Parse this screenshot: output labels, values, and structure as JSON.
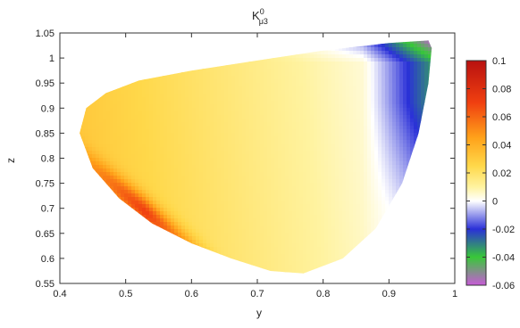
{
  "chart_data": {
    "type": "heatmap",
    "title_main": "K",
    "title_sup": "0",
    "title_sub": "μ3",
    "xlabel": "y",
    "ylabel": "z",
    "xlim": [
      0.4,
      1.0
    ],
    "ylim": [
      0.55,
      1.05
    ],
    "xticks": [
      "0.4",
      "0.5",
      "0.6",
      "0.7",
      "0.8",
      "0.9",
      "1"
    ],
    "yticks": [
      "0.55",
      "0.6",
      "0.65",
      "0.7",
      "0.75",
      "0.8",
      "0.85",
      "0.9",
      "0.95",
      "1",
      "1.05"
    ],
    "colorbar": {
      "min": -0.06,
      "max": 0.1,
      "ticks": [
        "0.1",
        "0.08",
        "0.06",
        "0.04",
        "0.02",
        "0",
        "-0.02",
        "-0.04",
        "-0.06"
      ],
      "stops": [
        {
          "v": -0.06,
          "color": "#c85ad8"
        },
        {
          "v": -0.04,
          "color": "#38c838"
        },
        {
          "v": -0.02,
          "color": "#2a30d8"
        },
        {
          "v": 0.0,
          "color": "#ffffff"
        },
        {
          "v": 0.01,
          "color": "#fff3a0"
        },
        {
          "v": 0.025,
          "color": "#ffd84a"
        },
        {
          "v": 0.045,
          "color": "#ffa21a"
        },
        {
          "v": 0.07,
          "color": "#f04010"
        },
        {
          "v": 0.1,
          "color": "#b81010"
        }
      ]
    },
    "region_boundary": [
      [
        0.43,
        0.85
      ],
      [
        0.44,
        0.9
      ],
      [
        0.47,
        0.93
      ],
      [
        0.52,
        0.955
      ],
      [
        0.6,
        0.975
      ],
      [
        0.7,
        0.995
      ],
      [
        0.8,
        1.015
      ],
      [
        0.9,
        1.03
      ],
      [
        0.96,
        1.035
      ],
      [
        0.965,
        1.02
      ],
      [
        0.96,
        0.95
      ],
      [
        0.945,
        0.85
      ],
      [
        0.92,
        0.75
      ],
      [
        0.88,
        0.66
      ],
      [
        0.83,
        0.6
      ],
      [
        0.77,
        0.57
      ],
      [
        0.72,
        0.575
      ],
      [
        0.66,
        0.6
      ],
      [
        0.6,
        0.63
      ],
      [
        0.54,
        0.67
      ],
      [
        0.49,
        0.72
      ],
      [
        0.45,
        0.78
      ],
      [
        0.43,
        0.85
      ]
    ],
    "value_field": {
      "description_points": [
        {
          "y": 0.5,
          "z": 0.85,
          "v": 0.03
        },
        {
          "y": 0.6,
          "z": 0.8,
          "v": 0.025
        },
        {
          "y": 0.52,
          "z": 0.72,
          "v": 0.075
        },
        {
          "y": 0.7,
          "z": 0.7,
          "v": 0.02
        },
        {
          "y": 0.8,
          "z": 0.9,
          "v": 0.005
        },
        {
          "y": 0.9,
          "z": 0.95,
          "v": -0.01
        },
        {
          "y": 0.95,
          "z": 1.02,
          "v": -0.02
        }
      ]
    }
  }
}
